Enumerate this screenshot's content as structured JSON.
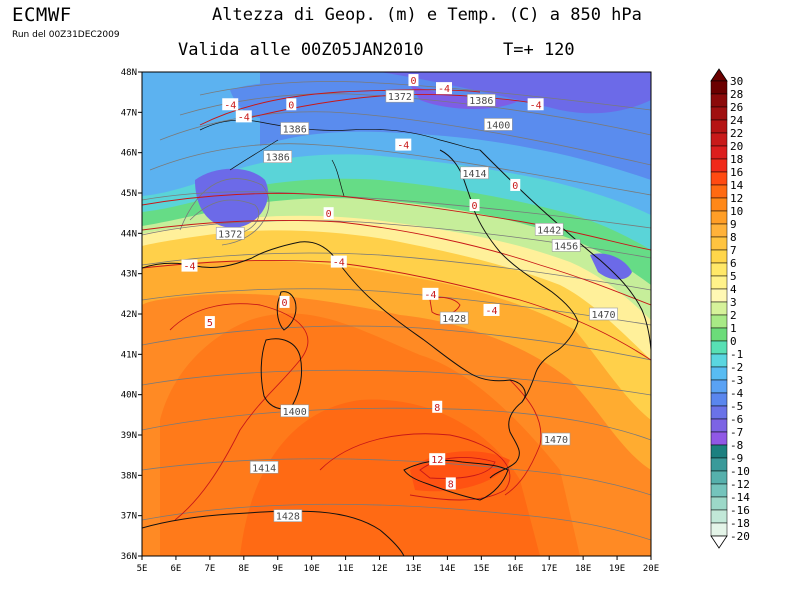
{
  "header": {
    "brand": "ECMWF",
    "run": "Run del 00Z31DEC2009",
    "title": "Altezza di Geop. (m) e Temp. (C) a 850 hPa",
    "valid": "Valida alle 00Z05JAN2010",
    "forecast_step": "T=+ 120"
  },
  "map": {
    "lon_labels": [
      "5E",
      "6E",
      "7E",
      "8E",
      "9E",
      "10E",
      "11E",
      "12E",
      "13E",
      "14E",
      "15E",
      "16E",
      "17E",
      "18E",
      "19E",
      "20E"
    ],
    "lat_labels": [
      "36N",
      "37N",
      "38N",
      "39N",
      "40N",
      "41N",
      "42N",
      "43N",
      "44N",
      "45N",
      "46N",
      "47N",
      "48N"
    ],
    "geopotential_labels": [
      {
        "text": "1372",
        "lon": 7.6,
        "lat": 44.0
      },
      {
        "text": "1372",
        "lon": 12.6,
        "lat": 47.4
      },
      {
        "text": "1386",
        "lon": 9.5,
        "lat": 46.6
      },
      {
        "text": "1386",
        "lon": 9.0,
        "lat": 45.9
      },
      {
        "text": "1386",
        "lon": 15.0,
        "lat": 47.3
      },
      {
        "text": "1400",
        "lon": 15.5,
        "lat": 46.7
      },
      {
        "text": "1414",
        "lon": 14.8,
        "lat": 45.5
      },
      {
        "text": "1442",
        "lon": 17.0,
        "lat": 44.1
      },
      {
        "text": "1456",
        "lon": 17.5,
        "lat": 43.7
      },
      {
        "text": "1470",
        "lon": 18.6,
        "lat": 42.0
      },
      {
        "text": "1428",
        "lon": 14.2,
        "lat": 41.9
      },
      {
        "text": "1400",
        "lon": 9.5,
        "lat": 39.6
      },
      {
        "text": "1414",
        "lon": 8.6,
        "lat": 38.2
      },
      {
        "text": "1428",
        "lon": 9.3,
        "lat": 37.0
      },
      {
        "text": "1470",
        "lon": 17.2,
        "lat": 38.9
      }
    ],
    "temperature_labels": [
      {
        "text": "-4",
        "lon": 13.9,
        "lat": 47.6
      },
      {
        "text": "-4",
        "lon": 16.6,
        "lat": 47.2
      },
      {
        "text": "0",
        "lon": 13.0,
        "lat": 47.8
      },
      {
        "text": "-4",
        "lon": 7.6,
        "lat": 47.2
      },
      {
        "text": "0",
        "lon": 9.4,
        "lat": 47.2
      },
      {
        "text": "-4",
        "lon": 8.0,
        "lat": 46.9
      },
      {
        "text": "-4",
        "lon": 12.7,
        "lat": 46.2
      },
      {
        "text": "0",
        "lon": 16.0,
        "lat": 45.2
      },
      {
        "text": "0",
        "lon": 14.8,
        "lat": 44.7
      },
      {
        "text": "0",
        "lon": 10.5,
        "lat": 44.5
      },
      {
        "text": "-4",
        "lon": 6.4,
        "lat": 43.2
      },
      {
        "text": "-4",
        "lon": 10.8,
        "lat": 43.3
      },
      {
        "text": "0",
        "lon": 9.2,
        "lat": 42.3
      },
      {
        "text": "-4",
        "lon": 13.5,
        "lat": 42.5
      },
      {
        "text": "-4",
        "lon": 15.3,
        "lat": 42.1
      },
      {
        "text": "5",
        "lon": 7.0,
        "lat": 41.8
      },
      {
        "text": "8",
        "lon": 13.7,
        "lat": 39.7
      },
      {
        "text": "12",
        "lon": 13.7,
        "lat": 38.4
      },
      {
        "text": "8",
        "lon": 14.1,
        "lat": 37.8
      }
    ]
  },
  "colorbar": {
    "values": [
      "30",
      "28",
      "26",
      "24",
      "22",
      "20",
      "18",
      "16",
      "14",
      "12",
      "10",
      "9",
      "8",
      "7",
      "6",
      "5",
      "4",
      "3",
      "2",
      "1",
      "0",
      "-1",
      "-2",
      "-3",
      "-4",
      "-5",
      "-6",
      "-7",
      "-8",
      "-9",
      "-10",
      "-12",
      "-14",
      "-16",
      "-18",
      "-20"
    ],
    "colors": [
      "#6b0000",
      "#8b0a0a",
      "#a01010",
      "#b51414",
      "#c81a1a",
      "#dc1e1e",
      "#f02a1a",
      "#ff4a12",
      "#ff6a12",
      "#ff8818",
      "#ff9e26",
      "#ffb23a",
      "#ffc440",
      "#ffd64a",
      "#ffe868",
      "#fff28a",
      "#fff8b4",
      "#d6f29a",
      "#a8ea86",
      "#6cdc7a",
      "#58e0b4",
      "#5ad6e0",
      "#58bcf2",
      "#5aa2f4",
      "#5a86ee",
      "#6a72e8",
      "#7c64e4",
      "#9058e6",
      "#1c8080",
      "#3a9a9a",
      "#56b0ac",
      "#74c4bc",
      "#9cd8c8",
      "#c2e8d8",
      "#e4f4e8"
    ]
  }
}
